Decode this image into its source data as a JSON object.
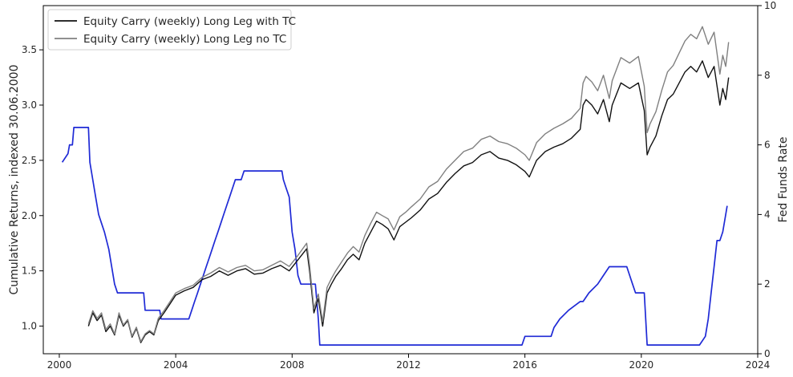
{
  "chart_data": {
    "type": "line",
    "xlabel": "",
    "ylabel_left": "Cumulative Returns, indexed 30.06.2000",
    "ylabel_right": "Fed Funds Rate",
    "xlim": [
      1999.45,
      2024.0
    ],
    "ylim_left": [
      0.75,
      3.9
    ],
    "ylim_right": [
      0,
      10
    ],
    "x_ticks": [
      2000,
      2004,
      2008,
      2012,
      2016,
      2020,
      2024
    ],
    "x_tick_labels": [
      "2000",
      "2004",
      "2008",
      "2012",
      "2016",
      "2020",
      "2024"
    ],
    "y_ticks_left": [
      1.0,
      1.5,
      2.0,
      2.5,
      3.0,
      3.5
    ],
    "y_tick_labels_left": [
      "1.0",
      "1.5",
      "2.0",
      "2.5",
      "3.0",
      "3.5"
    ],
    "y_ticks_right": [
      0,
      2,
      4,
      6,
      8,
      10
    ],
    "y_tick_labels_right": [
      "0",
      "2",
      "4",
      "6",
      "8",
      "10"
    ],
    "grid": false,
    "legend_position": "top-left",
    "legend": [
      {
        "label": "Equity Carry (weekly) Long Leg with TC",
        "color": "#111111"
      },
      {
        "label": "Equity Carry (weekly) Long Leg no TC",
        "color": "#808080"
      }
    ],
    "series": [
      {
        "name": "Equity Carry (weekly) Long Leg with TC",
        "axis": "left",
        "color": "#111111",
        "x": [
          2001.0,
          2001.15,
          2001.3,
          2001.45,
          2001.6,
          2001.75,
          2001.9,
          2002.05,
          2002.2,
          2002.35,
          2002.5,
          2002.65,
          2002.8,
          2002.95,
          2003.1,
          2003.25,
          2003.4,
          2003.6,
          2003.8,
          2004.0,
          2004.3,
          2004.6,
          2004.9,
          2005.2,
          2005.5,
          2005.8,
          2006.1,
          2006.4,
          2006.7,
          2007.0,
          2007.3,
          2007.6,
          2007.9,
          2008.2,
          2008.5,
          2008.6,
          2008.75,
          2008.9,
          2009.05,
          2009.2,
          2009.35,
          2009.5,
          2009.7,
          2009.9,
          2010.1,
          2010.3,
          2010.5,
          2010.7,
          2010.9,
          2011.1,
          2011.3,
          2011.5,
          2011.7,
          2011.9,
          2012.1,
          2012.4,
          2012.7,
          2013.0,
          2013.3,
          2013.6,
          2013.9,
          2014.2,
          2014.5,
          2014.8,
          2015.1,
          2015.4,
          2015.7,
          2016.0,
          2016.15,
          2016.4,
          2016.7,
          2017.0,
          2017.3,
          2017.6,
          2017.9,
          2018.0,
          2018.1,
          2018.3,
          2018.5,
          2018.7,
          2018.9,
          2019.0,
          2019.3,
          2019.6,
          2019.9,
          2020.1,
          2020.2,
          2020.3,
          2020.5,
          2020.7,
          2020.9,
          2021.1,
          2021.3,
          2021.5,
          2021.7,
          2021.9,
          2022.1,
          2022.3,
          2022.5,
          2022.7,
          2022.8,
          2022.9,
          2023.0
        ],
        "values": [
          1.0,
          1.12,
          1.05,
          1.1,
          0.95,
          1.0,
          0.92,
          1.1,
          1.0,
          1.05,
          0.9,
          0.98,
          0.85,
          0.92,
          0.95,
          0.92,
          1.05,
          1.12,
          1.2,
          1.28,
          1.32,
          1.35,
          1.42,
          1.45,
          1.5,
          1.46,
          1.5,
          1.52,
          1.47,
          1.48,
          1.52,
          1.55,
          1.5,
          1.6,
          1.7,
          1.5,
          1.12,
          1.25,
          1.0,
          1.3,
          1.38,
          1.45,
          1.52,
          1.6,
          1.65,
          1.6,
          1.75,
          1.85,
          1.95,
          1.92,
          1.88,
          1.78,
          1.9,
          1.94,
          1.98,
          2.05,
          2.15,
          2.2,
          2.3,
          2.38,
          2.45,
          2.48,
          2.55,
          2.58,
          2.52,
          2.5,
          2.46,
          2.4,
          2.35,
          2.5,
          2.58,
          2.62,
          2.65,
          2.7,
          2.78,
          3.0,
          3.05,
          3.0,
          2.92,
          3.05,
          2.85,
          3.0,
          3.2,
          3.15,
          3.2,
          2.95,
          2.55,
          2.62,
          2.72,
          2.9,
          3.05,
          3.1,
          3.2,
          3.3,
          3.35,
          3.3,
          3.4,
          3.25,
          3.35,
          3.0,
          3.15,
          3.05,
          3.25
        ]
      },
      {
        "name": "Equity Carry (weekly) Long Leg no TC",
        "axis": "left",
        "color": "#808080",
        "x": [
          2001.0,
          2001.15,
          2001.3,
          2001.45,
          2001.6,
          2001.75,
          2001.9,
          2002.05,
          2002.2,
          2002.35,
          2002.5,
          2002.65,
          2002.8,
          2002.95,
          2003.1,
          2003.25,
          2003.4,
          2003.6,
          2003.8,
          2004.0,
          2004.3,
          2004.6,
          2004.9,
          2005.2,
          2005.5,
          2005.8,
          2006.1,
          2006.4,
          2006.7,
          2007.0,
          2007.3,
          2007.6,
          2007.9,
          2008.2,
          2008.5,
          2008.6,
          2008.75,
          2008.9,
          2009.05,
          2009.2,
          2009.35,
          2009.5,
          2009.7,
          2009.9,
          2010.1,
          2010.3,
          2010.5,
          2010.7,
          2010.9,
          2011.1,
          2011.3,
          2011.5,
          2011.7,
          2011.9,
          2012.1,
          2012.4,
          2012.7,
          2013.0,
          2013.3,
          2013.6,
          2013.9,
          2014.2,
          2014.5,
          2014.8,
          2015.1,
          2015.4,
          2015.7,
          2016.0,
          2016.15,
          2016.4,
          2016.7,
          2017.0,
          2017.3,
          2017.6,
          2017.9,
          2018.0,
          2018.1,
          2018.3,
          2018.5,
          2018.7,
          2018.9,
          2019.0,
          2019.3,
          2019.6,
          2019.9,
          2020.1,
          2020.2,
          2020.3,
          2020.5,
          2020.7,
          2020.9,
          2021.1,
          2021.3,
          2021.5,
          2021.7,
          2021.9,
          2022.1,
          2022.3,
          2022.5,
          2022.7,
          2022.8,
          2022.9,
          2023.0
        ],
        "values": [
          1.02,
          1.14,
          1.07,
          1.12,
          0.97,
          1.02,
          0.93,
          1.12,
          1.01,
          1.06,
          0.91,
          0.99,
          0.86,
          0.93,
          0.96,
          0.93,
          1.07,
          1.14,
          1.22,
          1.3,
          1.34,
          1.37,
          1.44,
          1.48,
          1.53,
          1.49,
          1.53,
          1.55,
          1.5,
          1.51,
          1.55,
          1.59,
          1.54,
          1.64,
          1.75,
          1.55,
          1.16,
          1.29,
          1.04,
          1.35,
          1.43,
          1.5,
          1.58,
          1.66,
          1.72,
          1.67,
          1.82,
          1.93,
          2.03,
          2.0,
          1.97,
          1.87,
          1.99,
          2.03,
          2.08,
          2.15,
          2.26,
          2.31,
          2.42,
          2.5,
          2.58,
          2.61,
          2.69,
          2.72,
          2.67,
          2.65,
          2.61,
          2.55,
          2.5,
          2.66,
          2.74,
          2.79,
          2.83,
          2.88,
          2.97,
          3.2,
          3.26,
          3.21,
          3.13,
          3.27,
          3.06,
          3.22,
          3.43,
          3.38,
          3.44,
          3.17,
          2.75,
          2.83,
          2.94,
          3.13,
          3.3,
          3.36,
          3.47,
          3.58,
          3.64,
          3.6,
          3.71,
          3.55,
          3.66,
          3.28,
          3.45,
          3.35,
          3.57
        ]
      },
      {
        "name": "",
        "axis": "right",
        "color": "#1f2ad6",
        "x": [
          2000.1,
          2000.3,
          2000.35,
          2000.45,
          2000.5,
          2001.0,
          2001.05,
          2001.15,
          2001.25,
          2001.35,
          2001.45,
          2001.55,
          2001.7,
          2001.8,
          2001.9,
          2002.0,
          2002.1,
          2002.9,
          2002.95,
          2003.45,
          2003.5,
          2004.45,
          2004.55,
          2004.65,
          2004.75,
          2004.85,
          2004.95,
          2005.05,
          2005.15,
          2005.25,
          2005.35,
          2005.45,
          2005.55,
          2005.65,
          2005.75,
          2005.85,
          2005.95,
          2006.05,
          2006.15,
          2006.25,
          2006.35,
          2006.45,
          2006.5,
          2007.65,
          2007.7,
          2007.8,
          2007.9,
          2008.0,
          2008.1,
          2008.2,
          2008.3,
          2008.8,
          2008.9,
          2008.95,
          2015.9,
          2016.0,
          2016.9,
          2017.0,
          2017.2,
          2017.5,
          2017.9,
          2018.0,
          2018.2,
          2018.5,
          2018.7,
          2018.9,
          2019.0,
          2019.5,
          2019.6,
          2019.7,
          2019.8,
          2020.1,
          2020.15,
          2020.2,
          2022.0,
          2022.2,
          2022.3,
          2022.4,
          2022.5,
          2022.6,
          2022.7,
          2022.8,
          2022.9,
          2022.95
        ],
        "values": [
          5.5,
          5.75,
          6.0,
          6.0,
          6.5,
          6.5,
          5.5,
          5.0,
          4.5,
          4.0,
          3.75,
          3.5,
          3.0,
          2.5,
          2.0,
          1.75,
          1.75,
          1.75,
          1.25,
          1.25,
          1.0,
          1.0,
          1.25,
          1.5,
          1.75,
          2.0,
          2.25,
          2.5,
          2.75,
          3.0,
          3.25,
          3.5,
          3.75,
          4.0,
          4.25,
          4.5,
          4.75,
          5.0,
          5.0,
          5.0,
          5.25,
          5.25,
          5.25,
          5.25,
          5.0,
          4.75,
          4.5,
          3.5,
          3.0,
          2.25,
          2.0,
          2.0,
          1.0,
          0.25,
          0.25,
          0.5,
          0.5,
          0.75,
          1.0,
          1.25,
          1.5,
          1.5,
          1.75,
          2.0,
          2.25,
          2.5,
          2.5,
          2.5,
          2.25,
          2.0,
          1.75,
          1.75,
          1.0,
          0.25,
          0.25,
          0.5,
          1.0,
          1.75,
          2.5,
          3.25,
          3.25,
          3.5,
          4.0,
          4.25
        ]
      }
    ]
  }
}
